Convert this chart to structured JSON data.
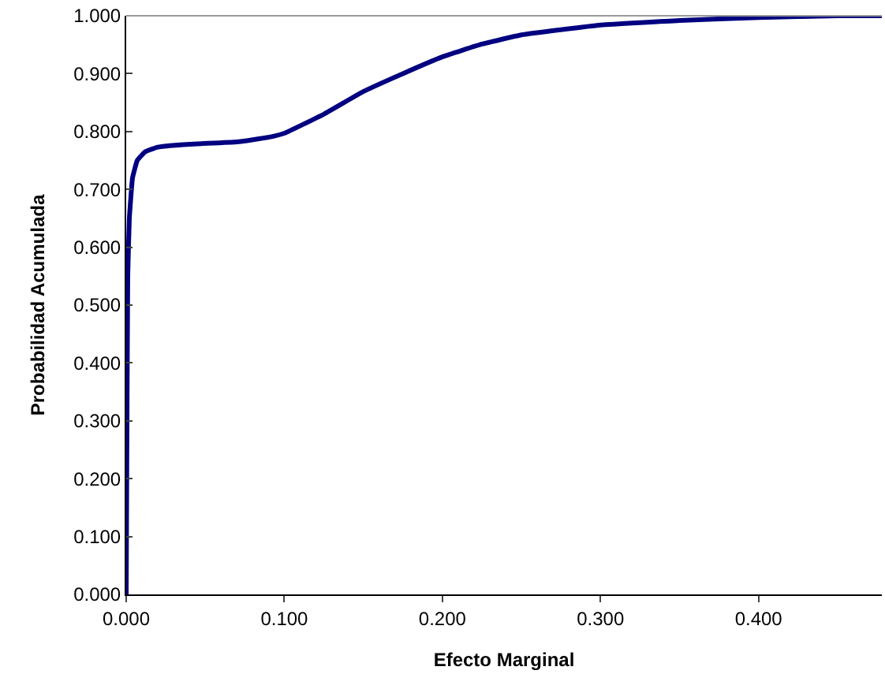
{
  "chart_data": {
    "type": "line",
    "xlabel": "Efecto Marginal",
    "ylabel": "Probabilidad Acumulada",
    "series": [
      {
        "color": "#000080",
        "x": [
          0,
          0.0005,
          0.001,
          0.002,
          0.004,
          0.007,
          0.012,
          0.02,
          0.04,
          0.07,
          0.09,
          0.1,
          0.125,
          0.15,
          0.175,
          0.2,
          0.225,
          0.25,
          0.3,
          0.35,
          0.4,
          0.45,
          0.478
        ],
        "values": [
          0,
          0.3,
          0.55,
          0.65,
          0.72,
          0.75,
          0.765,
          0.773,
          0.778,
          0.782,
          0.79,
          0.797,
          0.83,
          0.869,
          0.9,
          0.929,
          0.951,
          0.967,
          0.984,
          0.992,
          0.997,
          1.0,
          1.0
        ]
      }
    ],
    "xlim": [
      0,
      0.478
    ],
    "xticks": [
      {
        "value": 0,
        "label": "0.000"
      },
      {
        "value": 0.1,
        "label": "0.100"
      },
      {
        "value": 0.2,
        "label": "0.200"
      },
      {
        "value": 0.3,
        "label": "0.300"
      },
      {
        "value": 0.4,
        "label": "0.400"
      }
    ],
    "ylim": [
      0,
      1
    ],
    "yticks": [
      {
        "value": 0,
        "label": "0.000"
      },
      {
        "value": 0.1,
        "label": "0.100"
      },
      {
        "value": 0.2,
        "label": "0.200"
      },
      {
        "value": 0.3,
        "label": "0.300"
      },
      {
        "value": 0.4,
        "label": "0.400"
      },
      {
        "value": 0.5,
        "label": "0.500"
      },
      {
        "value": 0.6,
        "label": "0.600"
      },
      {
        "value": 0.7,
        "label": "0.700"
      },
      {
        "value": 0.8,
        "label": "0.800"
      },
      {
        "value": 0.9,
        "label": "0.900"
      },
      {
        "value": 1,
        "label": "1.000"
      }
    ],
    "marker": "none",
    "line_style": "solid"
  }
}
